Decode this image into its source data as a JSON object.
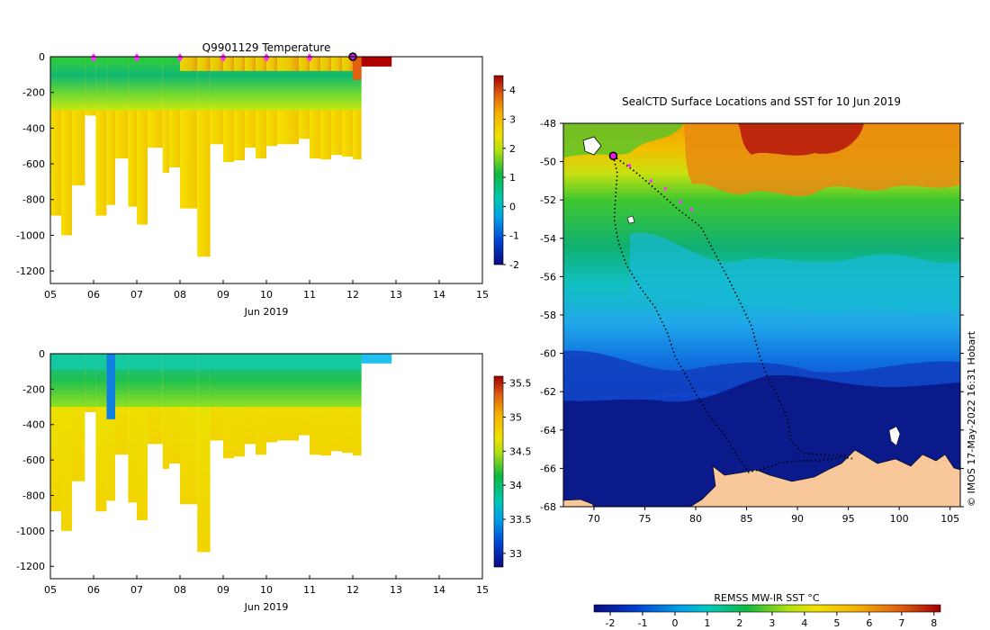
{
  "colors": {
    "land": "#f8c89a",
    "cold_deep": "#0a1a8a",
    "warm": "#e07010"
  },
  "chart_data": [
    {
      "type": "heatmap",
      "title": "Q9901129  Temperature",
      "xlabel": "Jun 2019",
      "ylabel": "",
      "xlim": [
        5,
        15
      ],
      "ylim": [
        -1270,
        0
      ],
      "x_ticks": [
        "05",
        "06",
        "07",
        "08",
        "09",
        "10",
        "11",
        "12",
        "13",
        "14",
        "15"
      ],
      "y_ticks": [
        "0",
        "-200",
        "-400",
        "-600",
        "-800",
        "-1000",
        "-1200"
      ],
      "colorbar": {
        "min": -2,
        "max": 4.5,
        "ticks": [
          "4",
          "3",
          "2",
          "1",
          "0",
          "-1",
          "-2"
        ]
      },
      "surface_markers_x": [
        6,
        7,
        8,
        9,
        10,
        11
      ],
      "current_marker_x": 12,
      "profiles": [
        {
          "x0": 5.0,
          "x1": 5.25,
          "depth": 890
        },
        {
          "x0": 5.25,
          "x1": 5.5,
          "depth": 1000
        },
        {
          "x0": 5.5,
          "x1": 5.8,
          "depth": 720
        },
        {
          "x0": 5.8,
          "x1": 6.05,
          "depth": 330
        },
        {
          "x0": 6.05,
          "x1": 6.3,
          "depth": 890
        },
        {
          "x0": 6.3,
          "x1": 6.5,
          "depth": 830
        },
        {
          "x0": 6.5,
          "x1": 6.8,
          "depth": 570
        },
        {
          "x0": 6.8,
          "x1": 7.0,
          "depth": 840
        },
        {
          "x0": 7.0,
          "x1": 7.25,
          "depth": 940
        },
        {
          "x0": 7.25,
          "x1": 7.6,
          "depth": 510
        },
        {
          "x0": 7.6,
          "x1": 7.75,
          "depth": 650
        },
        {
          "x0": 7.75,
          "x1": 8.0,
          "depth": 620
        },
        {
          "x0": 8.0,
          "x1": 8.4,
          "depth": 850
        },
        {
          "x0": 8.4,
          "x1": 8.7,
          "depth": 1120
        },
        {
          "x0": 8.7,
          "x1": 9.0,
          "depth": 490
        },
        {
          "x0": 9.0,
          "x1": 9.25,
          "depth": 590
        },
        {
          "x0": 9.25,
          "x1": 9.5,
          "depth": 580
        },
        {
          "x0": 9.5,
          "x1": 9.75,
          "depth": 510
        },
        {
          "x0": 9.75,
          "x1": 10.0,
          "depth": 570
        },
        {
          "x0": 10.0,
          "x1": 10.25,
          "depth": 500
        },
        {
          "x0": 10.25,
          "x1": 10.75,
          "depth": 490
        },
        {
          "x0": 10.75,
          "x1": 11.0,
          "depth": 460
        },
        {
          "x0": 11.0,
          "x1": 11.25,
          "depth": 570
        },
        {
          "x0": 11.25,
          "x1": 11.5,
          "depth": 575
        },
        {
          "x0": 11.5,
          "x1": 11.75,
          "depth": 550
        },
        {
          "x0": 11.75,
          "x1": 12.0,
          "depth": 560
        },
        {
          "x0": 12.0,
          "x1": 12.2,
          "depth": 575
        },
        {
          "x0": 12.2,
          "x1": 12.9,
          "depth": 55
        }
      ]
    },
    {
      "type": "heatmap",
      "title": "",
      "xlabel": "Jun 2019",
      "ylabel": "",
      "xlim": [
        5,
        15
      ],
      "ylim": [
        -1270,
        0
      ],
      "x_ticks": [
        "05",
        "06",
        "07",
        "08",
        "09",
        "10",
        "11",
        "12",
        "13",
        "14",
        "15"
      ],
      "y_ticks": [
        "0",
        "-200",
        "-400",
        "-600",
        "-800",
        "-1000",
        "-1200"
      ],
      "colorbar": {
        "min": 32.8,
        "max": 35.6,
        "ticks": [
          "35.5",
          "35",
          "34.5",
          "34",
          "33.5",
          "33"
        ]
      },
      "profiles_same_as_temperature": true
    },
    {
      "type": "heatmap",
      "title": "SealCTD Surface Locations and SST for 10 Jun 2019",
      "xlabel": "",
      "ylabel": "",
      "xlim": [
        67,
        106
      ],
      "ylim": [
        -68,
        -48
      ],
      "x_ticks": [
        "70",
        "75",
        "80",
        "85",
        "90",
        "95",
        "100",
        "105"
      ],
      "y_ticks": [
        "-48",
        "-50",
        "-52",
        "-54",
        "-56",
        "-58",
        "-60",
        "-62",
        "-64",
        "-66",
        "-68"
      ],
      "colorbar": {
        "label": "REMSS MW-IR SST °C",
        "min": -2.5,
        "max": 8.2,
        "ticks": [
          "-2",
          "-1",
          "0",
          "1",
          "2",
          "3",
          "4",
          "5",
          "6",
          "7",
          "8"
        ]
      },
      "current_position": {
        "lon": 71.9,
        "lat": -49.7
      },
      "recent_positions": [
        {
          "lon": 73.5,
          "lat": -50.2
        },
        {
          "lon": 75.6,
          "lat": -51.0
        },
        {
          "lon": 77.0,
          "lat": -51.4
        },
        {
          "lon": 78.5,
          "lat": -52.1
        },
        {
          "lon": 79.6,
          "lat": -52.5
        }
      ],
      "track_a": [
        [
          71.9,
          -49.7
        ],
        [
          72.3,
          -50.6
        ],
        [
          72.1,
          -52
        ],
        [
          72.0,
          -53
        ],
        [
          72.4,
          -54.2
        ],
        [
          73.2,
          -55.4
        ],
        [
          74.6,
          -56.6
        ],
        [
          76.0,
          -57.6
        ],
        [
          77.2,
          -58.9
        ],
        [
          78.0,
          -60.2
        ],
        [
          79.1,
          -61.2
        ],
        [
          80.0,
          -62.1
        ],
        [
          81.3,
          -63.2
        ],
        [
          83.0,
          -64.4
        ],
        [
          84.3,
          -65.5
        ],
        [
          85.2,
          -66.2
        ],
        [
          86.8,
          -66.0
        ],
        [
          88.4,
          -65.7
        ],
        [
          90.3,
          -65.6
        ],
        [
          92.4,
          -65.6
        ],
        [
          94.2,
          -65.4
        ],
        [
          95.5,
          -65.5
        ]
      ],
      "track_b": [
        [
          71.9,
          -49.7
        ],
        [
          74.0,
          -50.5
        ],
        [
          76.2,
          -51.5
        ],
        [
          78.3,
          -52.5
        ],
        [
          80.5,
          -53.4
        ],
        [
          82.0,
          -54.9
        ],
        [
          83.3,
          -56.2
        ],
        [
          84.4,
          -57.4
        ],
        [
          85.5,
          -58.6
        ],
        [
          86.2,
          -60.0
        ],
        [
          87.0,
          -61.2
        ],
        [
          88.0,
          -62.2
        ],
        [
          89.0,
          -63.4
        ],
        [
          89.4,
          -64.6
        ],
        [
          90.6,
          -65.2
        ],
        [
          92.5,
          -65.3
        ],
        [
          94.8,
          -65.3
        ]
      ]
    }
  ],
  "credit": "© IMOS 17-May-2022 16:31 Hobart"
}
